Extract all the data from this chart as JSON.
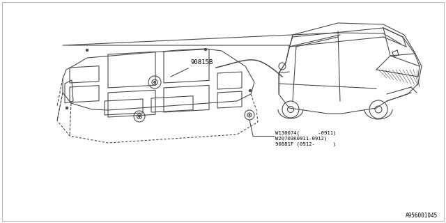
{
  "bg_color": "#ffffff",
  "line_color": "#4a4a4a",
  "part_label_1": "90815B",
  "part_label_2_line1": "W130074(      -0911)",
  "part_label_2_line2": "W20703K0911-0912)",
  "part_label_2_line3": "90881F (0912-      )",
  "diagram_id": "A956001045",
  "text_color": "#000000"
}
